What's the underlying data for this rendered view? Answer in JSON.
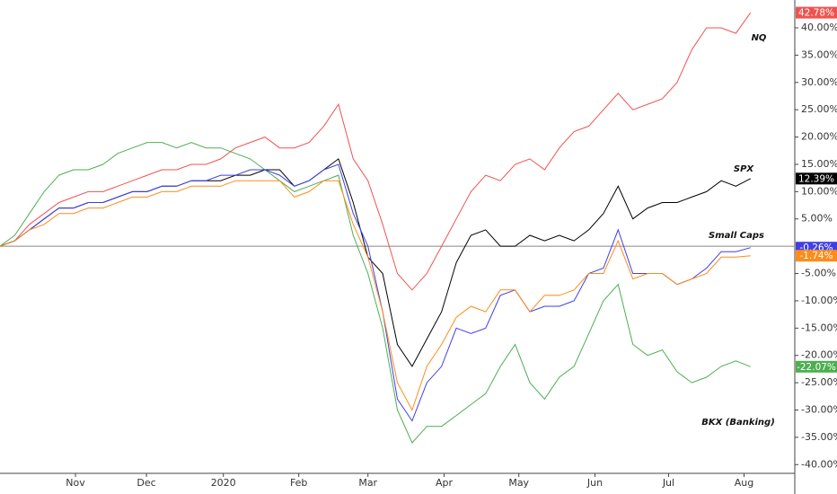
{
  "chart_data": {
    "type": "line",
    "x": [
      0,
      4,
      8,
      12,
      16,
      20,
      24,
      28,
      32,
      36,
      40,
      44,
      48,
      52,
      56,
      60,
      64,
      68,
      72,
      76,
      80,
      84,
      88,
      92,
      96,
      100,
      104,
      108,
      112,
      116,
      120,
      124,
      128,
      132,
      136,
      140,
      144,
      148,
      152,
      156,
      160,
      164,
      168,
      172,
      176,
      180,
      184,
      188,
      192,
      196,
      200,
      204
    ],
    "xlim": [
      0,
      216
    ],
    "xticks": [
      {
        "value": 20.5,
        "label": "Nov"
      },
      {
        "value": 39.8,
        "label": "Dec"
      },
      {
        "value": 60.7,
        "label": "2020"
      },
      {
        "value": 81.2,
        "label": "Feb"
      },
      {
        "value": 100,
        "label": "Mar"
      },
      {
        "value": 120.7,
        "label": "Apr"
      },
      {
        "value": 141,
        "label": "May"
      },
      {
        "value": 161.7,
        "label": "Jun"
      },
      {
        "value": 181.7,
        "label": "Jul"
      },
      {
        "value": 202.2,
        "label": "Aug"
      }
    ],
    "ylim": [
      -41.6,
      45.1
    ],
    "yticks": [
      {
        "value": -40,
        "label": "-40.00%"
      },
      {
        "value": -35,
        "label": "-35.00%"
      },
      {
        "value": -30,
        "label": "-30.00%"
      },
      {
        "value": -25,
        "label": "-25.00%"
      },
      {
        "value": -20,
        "label": "-20.00%"
      },
      {
        "value": -15,
        "label": "-15.00%"
      },
      {
        "value": -10,
        "label": "-10.00%"
      },
      {
        "value": -5,
        "label": "-5.00%"
      },
      {
        "value": 5,
        "label": "5.00%"
      },
      {
        "value": 10,
        "label": "10.00%"
      },
      {
        "value": 15,
        "label": "15.00%"
      },
      {
        "value": 20,
        "label": "20.00%"
      },
      {
        "value": 25,
        "label": "25.00%"
      },
      {
        "value": 30,
        "label": "30.00%"
      },
      {
        "value": 35,
        "label": "35.00%"
      },
      {
        "value": 40,
        "label": "40.00%"
      }
    ],
    "baseline": 0,
    "series": [
      {
        "name": "NQ",
        "color": "#ef5350",
        "last_value_label": "42.78%",
        "values": [
          0,
          1,
          4,
          6,
          8,
          9,
          10,
          10,
          11,
          12,
          13,
          14,
          14,
          15,
          15,
          16,
          18,
          19,
          20,
          18,
          18,
          19,
          22,
          26,
          16,
          12,
          4,
          -5,
          -8,
          -5,
          0,
          5,
          10,
          13,
          12,
          15,
          16,
          14,
          18,
          21,
          22,
          25,
          28,
          25,
          26,
          27,
          30,
          36,
          40,
          40,
          39,
          42.78
        ]
      },
      {
        "name": "BKX (Banking)",
        "color": "#4caf50",
        "last_value_label": "-22.07%",
        "values": [
          0,
          2,
          6,
          10,
          13,
          14,
          14,
          15,
          17,
          18,
          19,
          19,
          18,
          19,
          18,
          18,
          17,
          16,
          14,
          12,
          10,
          11,
          12,
          13,
          2,
          -5,
          -15,
          -30,
          -36,
          -33,
          -33,
          -31,
          -29,
          -27,
          -22,
          -18,
          -25,
          -28,
          -24,
          -22,
          -16,
          -10,
          -7,
          -18,
          -20,
          -19,
          -23,
          -25,
          -24,
          -22,
          -21,
          -22.07
        ]
      },
      {
        "name": "SPX",
        "color": "#000000",
        "last_value_label": "12.39%",
        "values": [
          0,
          1,
          3,
          5,
          7,
          7,
          8,
          8,
          9,
          10,
          10,
          11,
          11,
          12,
          12,
          12,
          13,
          13,
          14,
          14,
          11,
          12,
          14,
          16,
          8,
          -2,
          -5,
          -18,
          -22,
          -17,
          -12,
          -3,
          2,
          3,
          0,
          0,
          2,
          1,
          2,
          1,
          3,
          6,
          11,
          5,
          7,
          8,
          8,
          9,
          10,
          12,
          11,
          12.39
        ]
      },
      {
        "name": "Small Caps",
        "color": "#3f3fe8",
        "last_value_label": "-0.26%",
        "values": [
          0,
          1,
          3,
          5,
          7,
          7,
          8,
          8,
          9,
          10,
          10,
          11,
          11,
          12,
          12,
          13,
          13,
          14,
          14,
          13,
          11,
          12,
          14,
          15,
          6,
          0,
          -12,
          -28,
          -32,
          -25,
          -22,
          -15,
          -16,
          -15,
          -9,
          -8,
          -12,
          -11,
          -11,
          -10,
          -5,
          -4,
          3,
          -5,
          -5,
          -5,
          -7,
          -6,
          -4,
          -1,
          -1,
          -0.26
        ]
      },
      {
        "name": "Small Caps (orange)",
        "color": "#ff8c1a",
        "last_value_label": "-1.74%",
        "values": [
          0,
          1,
          3,
          4,
          6,
          6,
          7,
          7,
          8,
          9,
          9,
          10,
          10,
          11,
          11,
          11,
          12,
          12,
          12,
          12,
          9,
          10,
          12,
          12,
          4,
          -2,
          -12,
          -25,
          -30,
          -22,
          -18,
          -13,
          -11,
          -12,
          -8,
          -8,
          -12,
          -9,
          -9,
          -8,
          -5,
          -5,
          1,
          -6,
          -5,
          -5,
          -7,
          -6,
          -5,
          -2,
          -2,
          -1.74
        ]
      }
    ],
    "annotations": [
      "NQ",
      "SPX",
      "Small Caps",
      "BKX (Banking)"
    ]
  }
}
